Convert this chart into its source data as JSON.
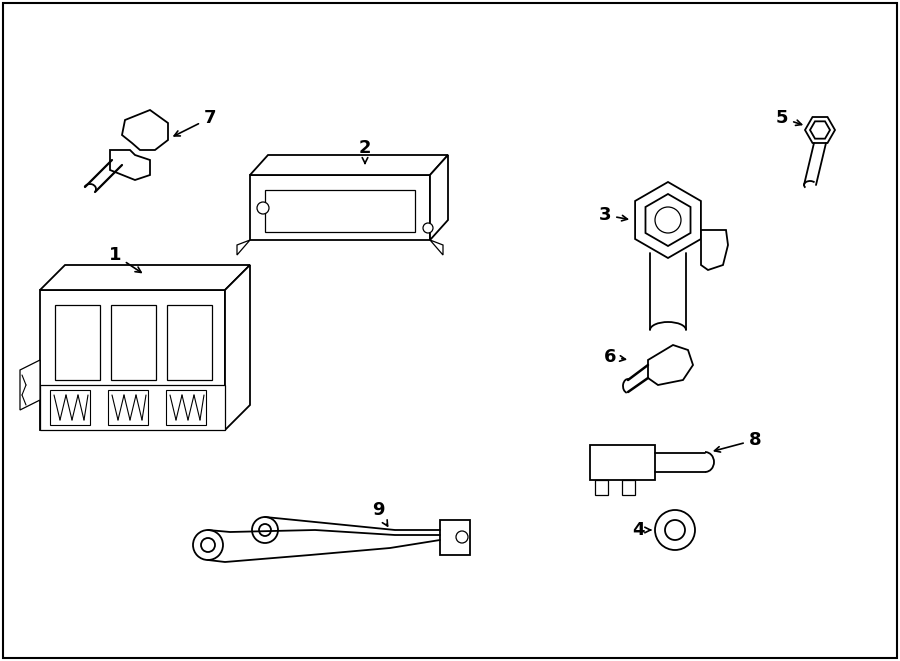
{
  "background": "#ffffff",
  "line_color": "#000000",
  "lw": 1.3,
  "border": [
    3,
    3,
    894,
    655
  ]
}
